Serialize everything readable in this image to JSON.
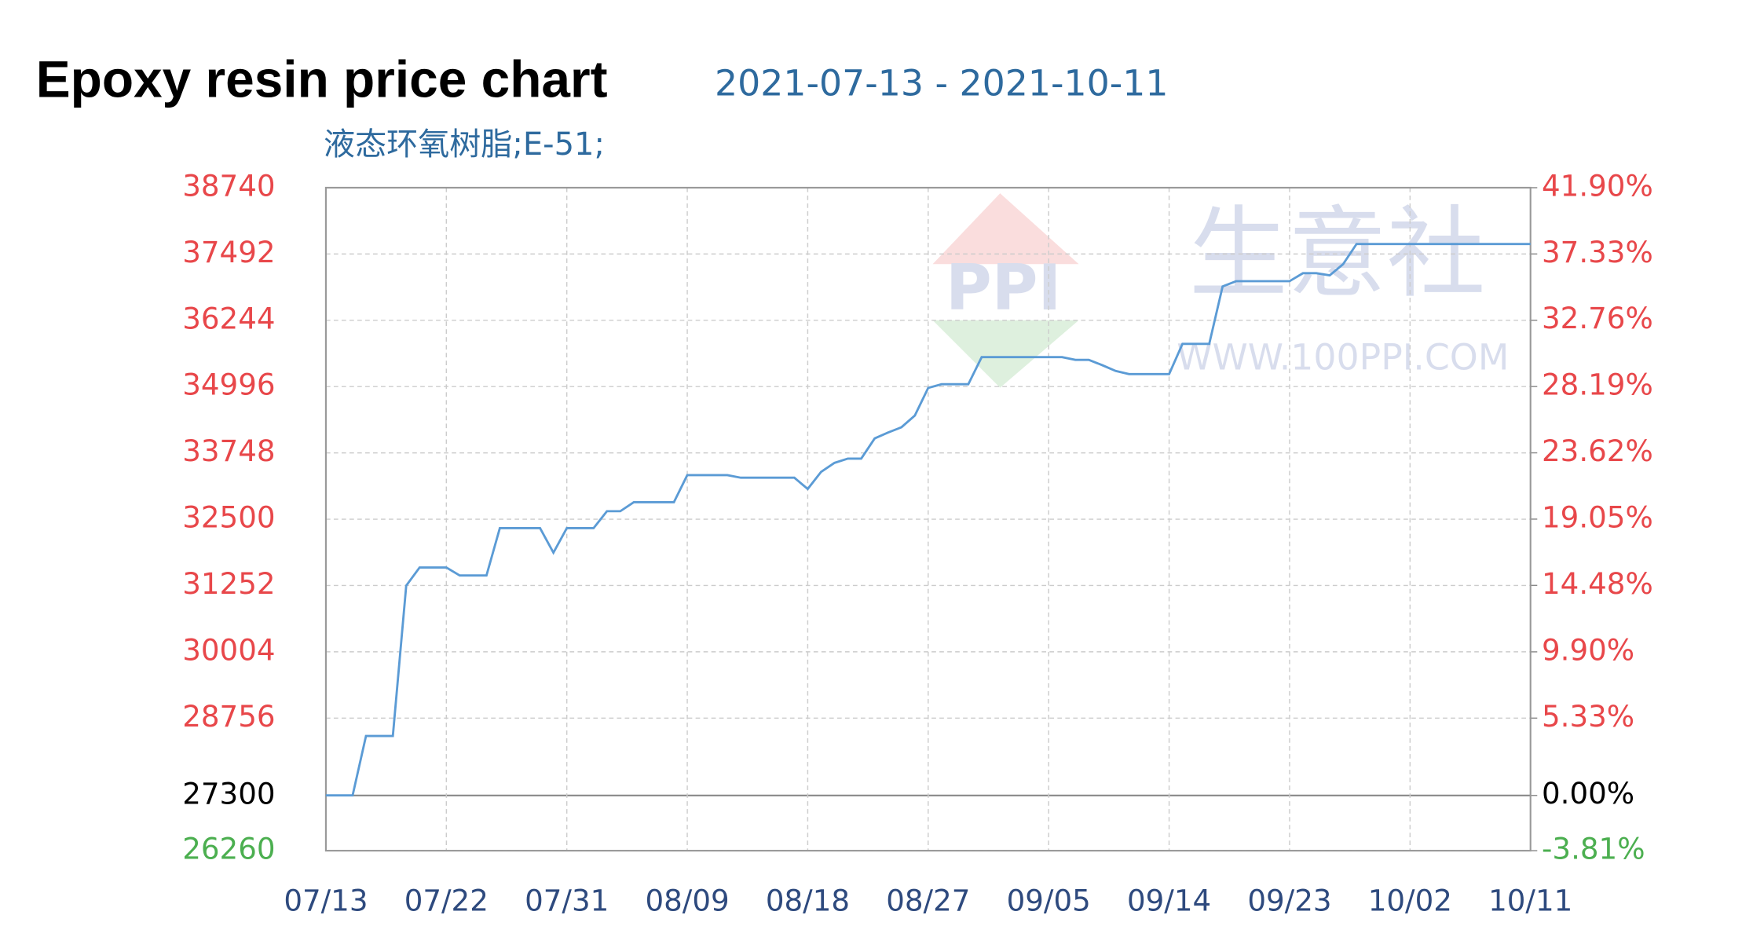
{
  "chart_data": {
    "type": "line",
    "title": "Epoxy resin price chart",
    "subtitle": "2021-07-13 - 2021-10-11",
    "watermark": [
      "PPI",
      "生意社",
      "WWW.100PPI.COM"
    ],
    "categories": [
      "07/13",
      null,
      null,
      null,
      null,
      null,
      null,
      null,
      null,
      "07/22",
      null,
      null,
      null,
      null,
      null,
      null,
      null,
      null,
      "07/31",
      null,
      null,
      null,
      null,
      null,
      null,
      null,
      null,
      "08/09",
      null,
      null,
      null,
      null,
      null,
      null,
      null,
      null,
      "08/18",
      null,
      null,
      null,
      null,
      null,
      null,
      null,
      null,
      "08/27",
      null,
      null,
      null,
      null,
      null,
      null,
      null,
      null,
      "09/05",
      null,
      null,
      null,
      null,
      null,
      null,
      null,
      null,
      "09/14",
      null,
      null,
      null,
      null,
      null,
      null,
      null,
      null,
      "09/23",
      null,
      null,
      null,
      null,
      null,
      null,
      null,
      null,
      "10/02",
      null,
      null,
      null,
      null,
      null,
      null,
      null,
      null,
      "10/11"
    ],
    "series": [
      {
        "name": "液态环氧树脂;E-51;",
        "color": "#5b9bd5",
        "values": [
          27300,
          27300,
          27300,
          28420,
          28420,
          28420,
          31250,
          31590,
          31590,
          31590,
          31440,
          31440,
          31440,
          32330,
          32330,
          32330,
          32330,
          31870,
          32330,
          32330,
          32330,
          32650,
          32650,
          32820,
          32820,
          32820,
          32820,
          33330,
          33330,
          33330,
          33330,
          33280,
          33280,
          33280,
          33280,
          33280,
          33070,
          33390,
          33560,
          33640,
          33640,
          34020,
          34130,
          34230,
          34450,
          34970,
          35040,
          35040,
          35040,
          35550,
          35550,
          35550,
          35550,
          35550,
          35550,
          35550,
          35500,
          35500,
          35400,
          35290,
          35230,
          35230,
          35230,
          35230,
          35800,
          35800,
          35800,
          36880,
          36980,
          36980,
          36980,
          36980,
          36980,
          37130,
          37130,
          37090,
          37300,
          37680,
          37680,
          37680,
          37680,
          37680,
          37680,
          37680,
          37680,
          37680,
          37680,
          37680,
          37680,
          37680,
          37680
        ]
      }
    ],
    "ylim": [
      26260,
      38740
    ],
    "yticks": [
      26260,
      27300,
      28756,
      30004,
      31252,
      32500,
      33748,
      34996,
      36244,
      37492,
      38740
    ],
    "ytick_colors": [
      "#4caf50",
      "#000000",
      "#e8474a",
      "#e8474a",
      "#e8474a",
      "#e8474a",
      "#e8474a",
      "#e8474a",
      "#e8474a",
      "#e8474a",
      "#e8474a"
    ],
    "y2lim": [
      -3.81,
      41.9
    ],
    "y2ticks": [
      {
        "value": -3.81,
        "label": "-3.81%"
      },
      {
        "value": 0,
        "label": "0.00%"
      },
      {
        "value": 5.33,
        "label": "5.33%"
      },
      {
        "value": 9.9,
        "label": "9.90%"
      },
      {
        "value": 14.48,
        "label": "14.48%"
      },
      {
        "value": 19.05,
        "label": "19.05%"
      },
      {
        "value": 23.62,
        "label": "23.62%"
      },
      {
        "value": 28.19,
        "label": "28.19%"
      },
      {
        "value": 32.76,
        "label": "32.76%"
      },
      {
        "value": 37.33,
        "label": "37.33%"
      },
      {
        "value": 41.9,
        "label": "41.90%"
      }
    ],
    "grid": true
  }
}
